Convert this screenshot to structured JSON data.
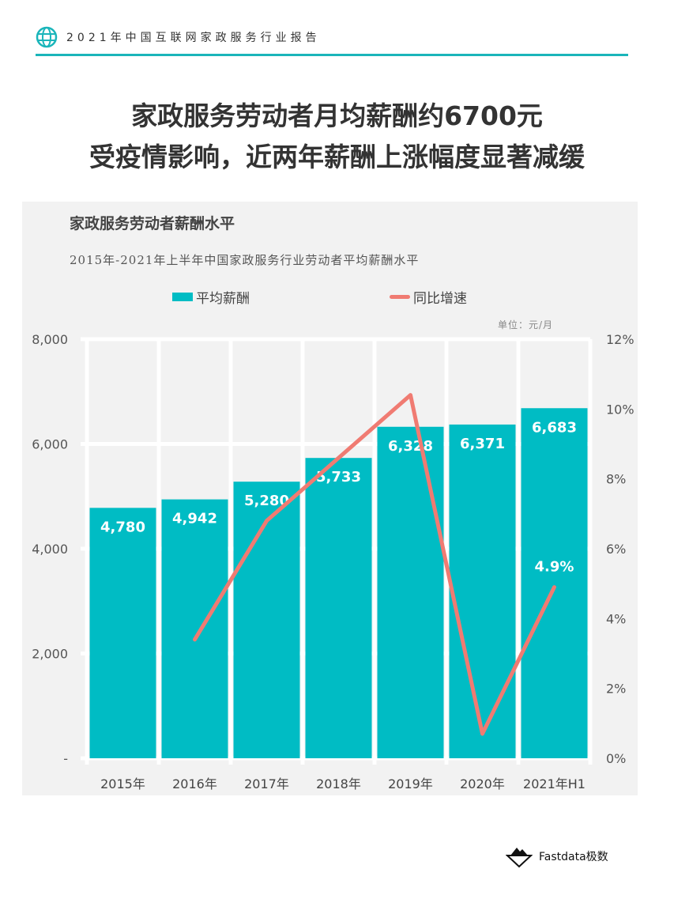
{
  "header": {
    "report_title": "2021年中国互联网家政服务行业报告",
    "icon": "globe-icon"
  },
  "headline": {
    "line1": "家政服务劳动者月均薪酬约6700元",
    "line2": "受疫情影响，近两年薪酬上涨幅度显著减缓"
  },
  "footer": {
    "brand": "Fastdata极数"
  },
  "chart_data": {
    "type": "bar+line",
    "title": "家政服务劳动者薪酬水平",
    "subtitle": "2015年-2021年上半年中国家政服务行业劳动者平均薪酬水平",
    "unit": "单位：元/月",
    "categories": [
      "2015年",
      "2016年",
      "2017年",
      "2018年",
      "2019年",
      "2020年",
      "2021年H1"
    ],
    "series": [
      {
        "name": "平均薪酬",
        "type": "bar",
        "axis": "left",
        "color": "#00bcc4",
        "values": [
          4780,
          4942,
          5280,
          5733,
          6328,
          6371,
          6683
        ],
        "labels": [
          "4,780",
          "4,942",
          "5,280",
          "5,733",
          "6,328",
          "6,371",
          "6,683"
        ]
      },
      {
        "name": "同比增速",
        "type": "line",
        "axis": "right",
        "color": "#f07b72",
        "values": [
          null,
          3.4,
          6.8,
          8.6,
          10.4,
          0.7,
          4.9
        ],
        "labels": {
          "6": "4.9%"
        }
      }
    ],
    "left_axis": {
      "range": [
        0,
        8000
      ],
      "ticks": [
        "-",
        "2,000",
        "4,000",
        "6,000",
        "8,000"
      ]
    },
    "right_axis": {
      "range": [
        0,
        12
      ],
      "ticks": [
        "0%",
        "2%",
        "4%",
        "6%",
        "8%",
        "10%",
        "12%"
      ]
    },
    "grid": true,
    "legend": "top"
  }
}
